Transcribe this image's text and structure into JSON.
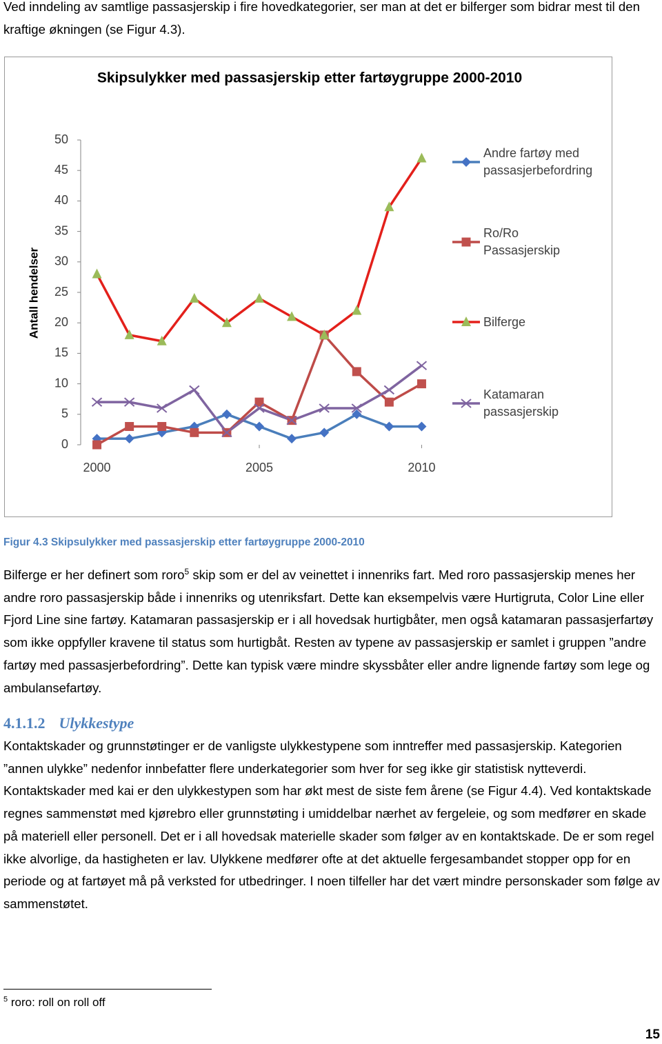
{
  "intro": "Ved inndeling av samtlige passasjerskip i fire hovedkategorier, ser man at det er bilferger som bidrar mest til den kraftige økningen (se Figur 4.3).",
  "chart_data": {
    "type": "line",
    "title": "Skipsulykker med passasjerskip etter fartøygruppe 2000-2010",
    "y_label": "Antall hendelser",
    "x": [
      2000,
      2001,
      2002,
      2003,
      2004,
      2005,
      2006,
      2007,
      2008,
      2009,
      2010
    ],
    "xlim": [
      1999.5,
      2010.5
    ],
    "xticks": [
      2000,
      2005,
      2010
    ],
    "ylim": [
      0,
      50
    ],
    "yticks": [
      0,
      5,
      10,
      15,
      20,
      25,
      30,
      35,
      40,
      45,
      50
    ],
    "grid": false,
    "legend": "right",
    "series": [
      {
        "name": "Andre fartøy med passasjerbefordring",
        "color": "#4a7ebb",
        "marker": "diamond",
        "marker_color": "#4472c4",
        "values": [
          1,
          1,
          2,
          3,
          5,
          3,
          1,
          2,
          5,
          3,
          3
        ]
      },
      {
        "name": "Ro/Ro Passasjerskip",
        "color": "#be4b48",
        "marker": "square",
        "marker_color": "#c0504d",
        "values": [
          0,
          3,
          3,
          2,
          2,
          7,
          4,
          18,
          12,
          7,
          10
        ]
      },
      {
        "name": "Bilferge",
        "color": "#e3201b",
        "marker": "triangle",
        "marker_color": "#9bbb59",
        "values": [
          28,
          18,
          17,
          24,
          20,
          24,
          21,
          18,
          22,
          39,
          47
        ]
      },
      {
        "name": "Katamaran passasjerskip",
        "color": "#7f64a0",
        "marker": "x",
        "marker_color": "#7f64a0",
        "values": [
          7,
          7,
          6,
          9,
          2,
          6,
          4,
          6,
          6,
          9,
          13
        ]
      }
    ]
  },
  "caption": "Figur 4.3 Skipsulykker med passasjerskip etter fartøygruppe 2000-2010",
  "paragraph_1": {
    "before": "Bilferge er her definert som roro",
    "footnote_ref": "5",
    "after": " skip som er del av veinettet i innenriks fart. Med roro passasjerskip menes her andre roro passasjerskip både i innenriks og utenriksfart. Dette kan eksempelvis være Hurtigruta, Color Line eller Fjord Line sine fartøy. Katamaran passasjerskip er i all hovedsak hurtigbåter, men også katamaran passasjerfartøy som ikke oppfyller kravene til status som hurtigbåt. Resten av typene av passasjerskip er samlet i gruppen ”andre fartøy med passasjerbefordring”. Dette kan typisk være mindre skyssbåter eller andre lignende fartøy som lege og ambulansefartøy."
  },
  "heading": {
    "number": "4.1.1.2",
    "title": "Ulykkestype"
  },
  "paragraph_2": "Kontaktskader og grunnstøtinger er de vanligste ulykkestypene som inntreffer med passasjerskip. Kategorien ”annen ulykke” nedenfor innbefatter flere underkategorier som hver for seg ikke gir statistisk nytteverdi. Kontaktskader med kai er den ulykkestypen som har økt mest de siste fem årene (se Figur 4.4). Ved kontaktskade regnes sammenstøt med kjørebro eller grunnstøting i umiddelbar nærhet av fergeleie, og som medfører en skade på materiell eller personell. Det er i all hovedsak materielle skader som følger av en kontaktskade. De er som regel ikke alvorlige, da hastigheten er lav. Ulykkene medfører ofte at det aktuelle fergesambandet stopper opp for en periode og at fartøyet må på verksted for utbedringer. I noen tilfeller har det vært mindre personskader som følge av sammenstøtet.",
  "footnote": {
    "number": "5",
    "text": "roro: roll on roll off"
  },
  "page_number": "15"
}
